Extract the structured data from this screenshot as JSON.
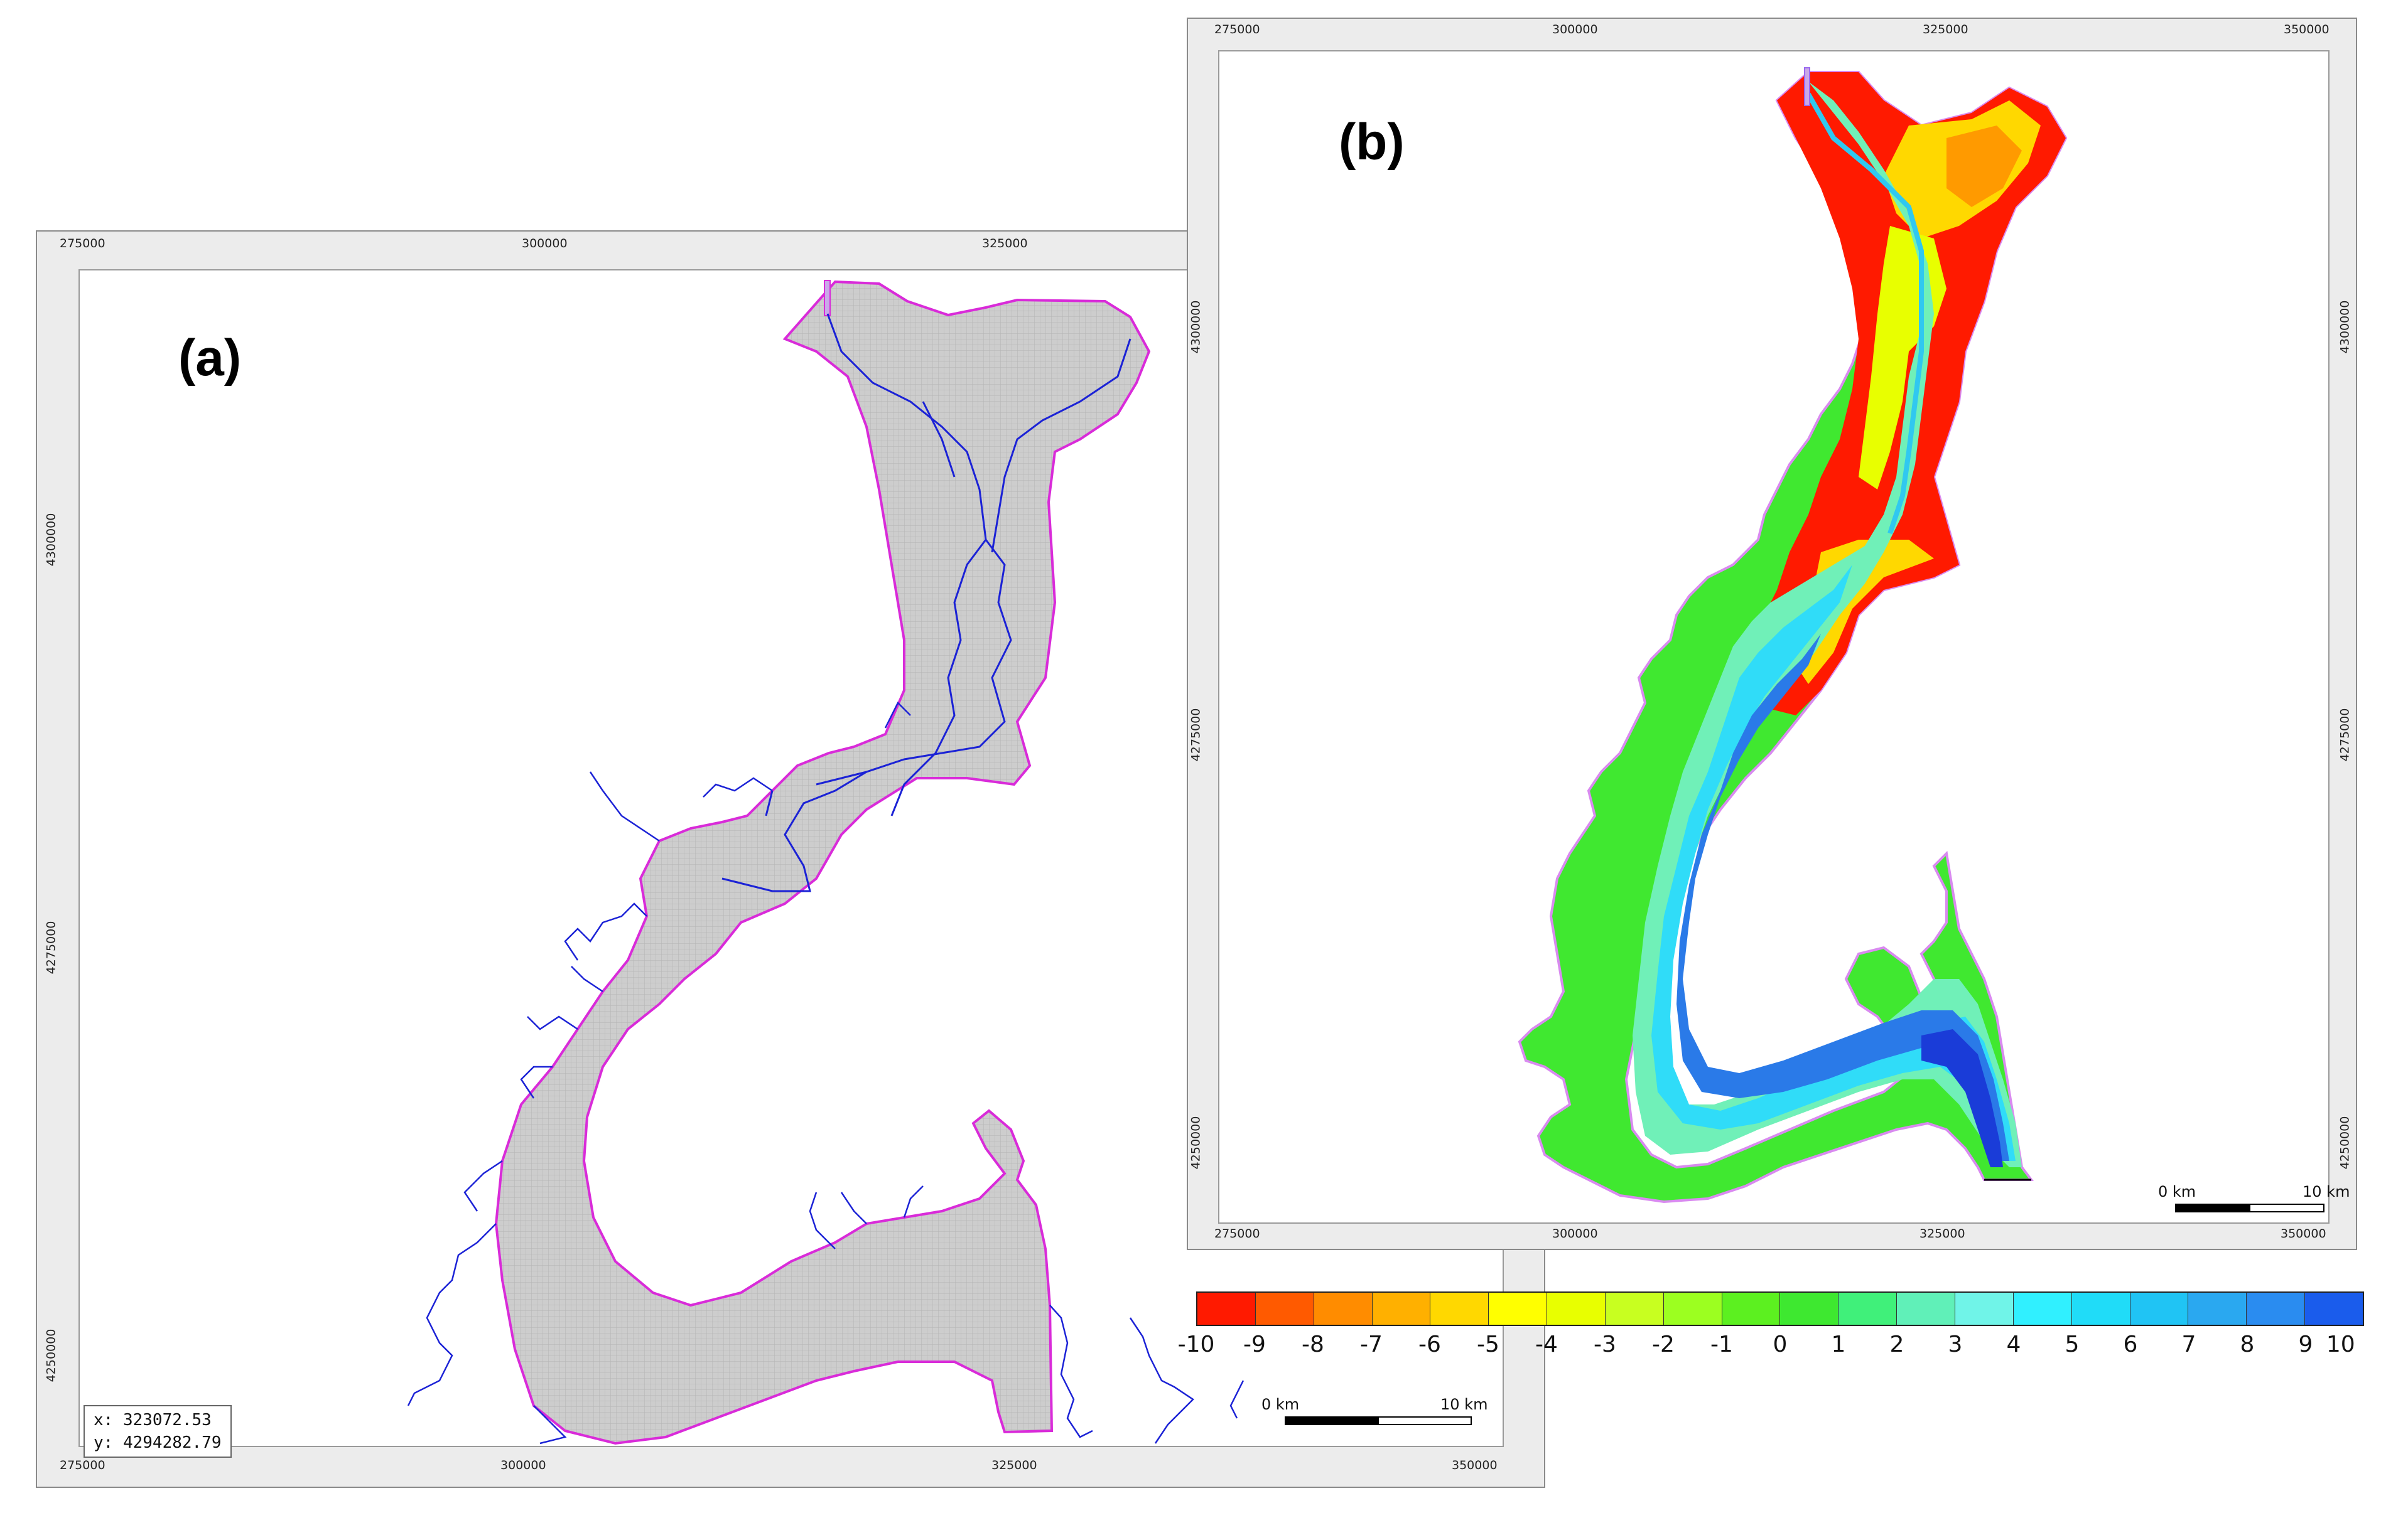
{
  "panel_a": {
    "label": "(a)",
    "x_ticks": [
      "275000",
      "300000",
      "325000",
      "350000"
    ],
    "y_ticks": [
      "4250000",
      "4275000",
      "4300000"
    ],
    "coord_x": "x: 323072.53",
    "coord_y": "y: 4294282.79",
    "scale_start": "0 km",
    "scale_end": "10 km",
    "colors": {
      "mesh_fill": "#c9c9c9",
      "boundary": "#d92bd9",
      "river": "#1b22d6"
    }
  },
  "panel_b": {
    "label": "(b)",
    "x_ticks": [
      "275000",
      "300000",
      "325000",
      "350000"
    ],
    "y_ticks": [
      "4250000",
      "4275000",
      "4300000"
    ],
    "scale_start": "0 km",
    "scale_end": "10 km"
  },
  "colorbar": {
    "labels": [
      "-10",
      "-9",
      "-8",
      "-7",
      "-6",
      "-5",
      "-4",
      "-3",
      "-2",
      "-1",
      "0",
      "1",
      "2",
      "3",
      "4",
      "5",
      "6",
      "7",
      "8",
      "9",
      "10"
    ],
    "colors": [
      "#ff1a00",
      "#ff5a00",
      "#ff8c00",
      "#ffb000",
      "#ffd800",
      "#ffff00",
      "#e8ff00",
      "#c8ff20",
      "#9cff20",
      "#5cf020",
      "#3ee830",
      "#40f07a",
      "#60f0b8",
      "#70f4e8",
      "#30f0ff",
      "#20dcf8",
      "#20c4f4",
      "#2aa8f0",
      "#2a8cf0",
      "#1a5cec"
    ]
  }
}
